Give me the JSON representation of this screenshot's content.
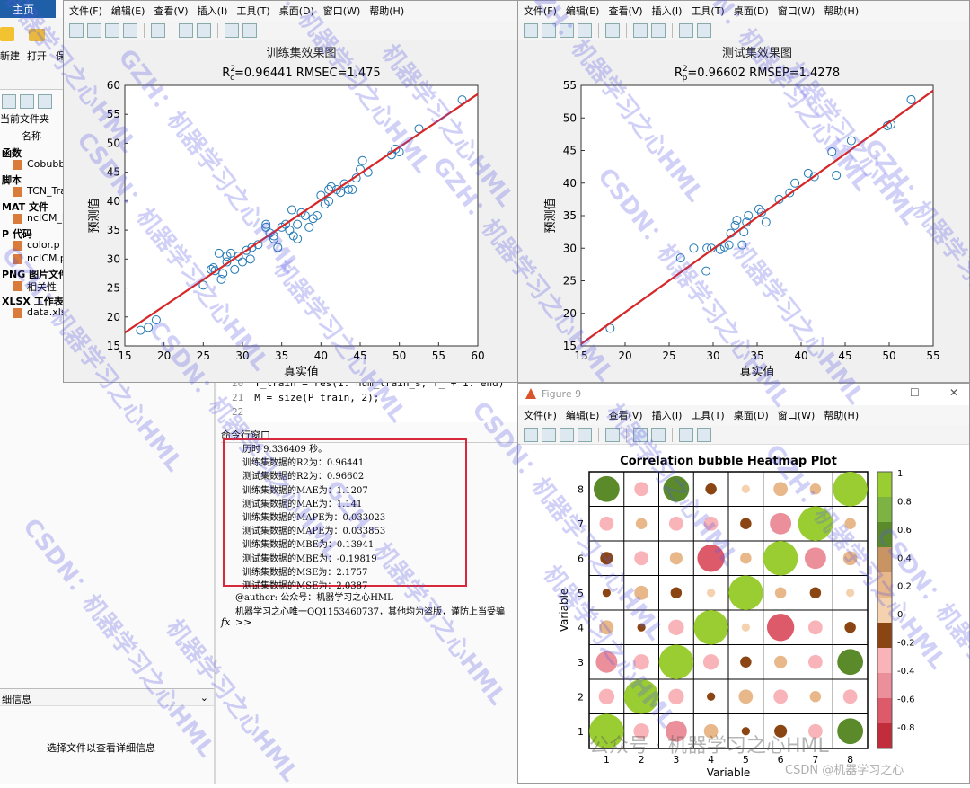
{
  "editor": {
    "home_tab": "主页",
    "toolbar_labels": [
      "新建",
      "打开",
      "保"
    ],
    "current_folder": "当前文件夹",
    "name_header": "名称",
    "groups": [
      {
        "title": "函数",
        "files": [
          "Cobubb"
        ]
      },
      {
        "title": "脚本",
        "files": [
          "TCN_Tra"
        ]
      },
      {
        "title": "MAT 文件",
        "files": [
          "ncICM_I"
        ]
      },
      {
        "title": "P 代码",
        "files": [
          "color.p",
          "ncICM.p"
        ]
      },
      {
        "title": "PNG 图片文件",
        "files": [
          "相关性"
        ]
      },
      {
        "title": "XLSX 工作表",
        "files": [
          "data.xlsx"
        ]
      }
    ],
    "details_label": "细信息",
    "details_hint": "选择文件以查看详细信息",
    "code_lines": [
      {
        "num": "20",
        "text": "T_train = res(1: num_train_s, f_ + 1: end)'"
      },
      {
        "num": "21",
        "text": "M = size(P_train, 2);"
      },
      {
        "num": "22",
        "text": ""
      }
    ],
    "command_window_title": "命令行窗口",
    "output_lines": [
      "历时 9.336409 秒。",
      "训练集数据的R2为：0.96441",
      "测试集数据的R2为：0.96602",
      "训练集数据的MAE为：1.1207",
      "测试集数据的MAE为：1.141",
      "训练集数据的MAPE为：0.033023",
      "测试集数据的MAPE为：0.033853",
      "训练集数据的MBE为：0.13941",
      "测试集数据的MBE为：-0.19819",
      "训练集数据的MSE为：2.1757",
      "测试集数据的MSE为：2.0387"
    ],
    "extra_lines": [
      "@author: 公众号：机器学习之心HML",
      "机器学习之心唯一QQ1153460737，其他均为盗版，谨防上当受骗"
    ],
    "prompt": ">>",
    "fx": "fx"
  },
  "menus": [
    "文件(F)",
    "编辑(E)",
    "查看(V)",
    "插入(I)",
    "工具(T)",
    "桌面(D)",
    "窗口(W)",
    "帮助(H)"
  ],
  "figure9_title": "Figure 9",
  "window_controls": {
    "minimize": "—",
    "maximize": "☐",
    "close": "✕"
  },
  "watermarks": [
    "机器学习之心HML",
    "GZH：机器学习之心HML",
    "CSDN：机器学习之心HML"
  ],
  "footer_wechat": "公众号 · 机器学习之心HML",
  "footer_csdn": "CSDN @机器学习之心",
  "chart_data": [
    {
      "type": "scatter",
      "title": "训练集效果图",
      "subtitle": "R_c^2=0.96441  RMSEC=1.475",
      "xlabel": "真实值",
      "ylabel": "预测值",
      "xlim": [
        15,
        60
      ],
      "ylim": [
        15,
        60
      ],
      "xticks": [
        15,
        20,
        25,
        30,
        35,
        40,
        45,
        50,
        55,
        60
      ],
      "yticks": [
        15,
        20,
        25,
        30,
        35,
        40,
        45,
        50,
        55,
        60
      ],
      "line": [
        [
          15,
          17.3
        ],
        [
          60,
          58.5
        ]
      ],
      "line_color": "#d62728",
      "marker_color": "#1f77b4",
      "points": [
        [
          17,
          17.7
        ],
        [
          18,
          18.2
        ],
        [
          19,
          19.5
        ],
        [
          25,
          25.5
        ],
        [
          26,
          28.2
        ],
        [
          26.3,
          28.5
        ],
        [
          26.5,
          28
        ],
        [
          27,
          31
        ],
        [
          27.3,
          26.5
        ],
        [
          27.5,
          27.5
        ],
        [
          28,
          29.5
        ],
        [
          28,
          30.5
        ],
        [
          28.5,
          31
        ],
        [
          29,
          28.2
        ],
        [
          29.5,
          30.5
        ],
        [
          30,
          29.5
        ],
        [
          30.5,
          31.5
        ],
        [
          31,
          30
        ],
        [
          31.2,
          32
        ],
        [
          32,
          32.5
        ],
        [
          33,
          35.5
        ],
        [
          33,
          36
        ],
        [
          33.5,
          34.5
        ],
        [
          34,
          34
        ],
        [
          34,
          33.5
        ],
        [
          34.5,
          32
        ],
        [
          35,
          35.5
        ],
        [
          35.5,
          36
        ],
        [
          36,
          35
        ],
        [
          36.3,
          38.5
        ],
        [
          36.5,
          34
        ],
        [
          37,
          33.5
        ],
        [
          37,
          36
        ],
        [
          37.5,
          38
        ],
        [
          38,
          37.5
        ],
        [
          38.5,
          35.5
        ],
        [
          39,
          37
        ],
        [
          39.5,
          37.5
        ],
        [
          40,
          41
        ],
        [
          40.5,
          39.5
        ],
        [
          41,
          40
        ],
        [
          41,
          42
        ],
        [
          41.3,
          42.5
        ],
        [
          42,
          42
        ],
        [
          42.5,
          41.5
        ],
        [
          43,
          43
        ],
        [
          43.5,
          42
        ],
        [
          44,
          42
        ],
        [
          44.5,
          44
        ],
        [
          45,
          45.5
        ],
        [
          45.3,
          47
        ],
        [
          46,
          45
        ],
        [
          49,
          48
        ],
        [
          49.5,
          49
        ],
        [
          50,
          48.5
        ],
        [
          52.5,
          52.5
        ],
        [
          58,
          57.5
        ]
      ]
    },
    {
      "type": "scatter",
      "title": "测试集效果图",
      "subtitle": "R_p^2=0.96602  RMSEP=1.4278",
      "xlabel": "真实值",
      "ylabel": "预测值",
      "xlim": [
        15,
        55
      ],
      "ylim": [
        15,
        55
      ],
      "xticks": [
        15,
        20,
        25,
        30,
        35,
        40,
        45,
        50,
        55
      ],
      "yticks": [
        15,
        20,
        25,
        30,
        35,
        40,
        45,
        50,
        55
      ],
      "line": [
        [
          15,
          15.3
        ],
        [
          55,
          54.2
        ]
      ],
      "line_color": "#d62728",
      "marker_color": "#1f77b4",
      "points": [
        [
          18.3,
          17.7
        ],
        [
          26.3,
          28.5
        ],
        [
          27.8,
          30
        ],
        [
          29.2,
          26.5
        ],
        [
          29.3,
          30
        ],
        [
          29.8,
          30
        ],
        [
          30.8,
          29.8
        ],
        [
          31.3,
          30.2
        ],
        [
          31.8,
          30.5
        ],
        [
          32,
          32.3
        ],
        [
          32.5,
          33.5
        ],
        [
          32.7,
          34.3
        ],
        [
          33.3,
          30.5
        ],
        [
          33.5,
          32.5
        ],
        [
          33.8,
          34
        ],
        [
          34,
          35
        ],
        [
          35.2,
          36
        ],
        [
          35.5,
          35.5
        ],
        [
          36,
          34
        ],
        [
          37.5,
          37.5
        ],
        [
          38.7,
          38.5
        ],
        [
          39.3,
          40
        ],
        [
          40.8,
          41.5
        ],
        [
          41.5,
          41
        ],
        [
          43.5,
          44.8
        ],
        [
          44,
          41.2
        ],
        [
          45.7,
          46.5
        ],
        [
          49.8,
          48.8
        ],
        [
          50.2,
          49
        ],
        [
          52.5,
          52.8
        ]
      ]
    },
    {
      "type": "heatmap",
      "title": "Correlation bubble Heatmap Plot",
      "xlabel": "Variable",
      "ylabel": "Variable",
      "categories": [
        "1",
        "2",
        "3",
        "4",
        "5",
        "6",
        "7",
        "8"
      ],
      "colorbar_ticks": [
        "1",
        "0.8",
        "0.6",
        "0.4",
        "0.2",
        "0",
        "-0.2",
        "-0.4",
        "-0.6",
        "-0.8"
      ],
      "colorbar_colors": [
        "#9acd32",
        "#7db342",
        "#5a8a2a",
        "#c89464",
        "#e8b88a",
        "#f4d2b0",
        "#8b4513",
        "#f8b4b8",
        "#eb909a",
        "#dc5a6a",
        "#c22d3c"
      ],
      "matrix": [
        [
          1,
          -0.35,
          -0.55,
          0.3,
          -0.1,
          -0.25,
          -0.3,
          0.7
        ],
        [
          -0.35,
          1,
          -0.35,
          -0.1,
          0.3,
          -0.3,
          0.2,
          -0.3
        ],
        [
          -0.55,
          -0.35,
          1,
          -0.35,
          -0.2,
          0.25,
          -0.3,
          0.7
        ],
        [
          0.3,
          -0.1,
          -0.35,
          1,
          0.1,
          -0.75,
          -0.3,
          -0.2
        ],
        [
          -0.1,
          0.3,
          -0.2,
          0.1,
          1,
          0.2,
          -0.2,
          0.1
        ],
        [
          -0.25,
          -0.3,
          0.25,
          -0.75,
          0.2,
          1,
          -0.55,
          0.3
        ],
        [
          -0.3,
          0.2,
          -0.3,
          -0.3,
          -0.2,
          -0.55,
          1,
          0.2
        ],
        [
          0.7,
          -0.3,
          0.7,
          -0.2,
          0.1,
          0.3,
          0.2,
          1
        ]
      ]
    }
  ]
}
